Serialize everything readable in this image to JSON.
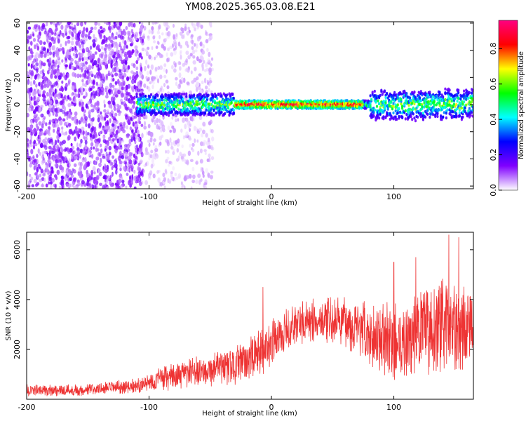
{
  "title": "YM08.2025.365.03.08.E21",
  "chart_data": [
    {
      "type": "heatmap",
      "name": "spectrogram",
      "xlabel": "Height of straight line (km)",
      "ylabel": "Frequency (Hz)",
      "xlim": [
        -200,
        165
      ],
      "ylim": [
        -62,
        61
      ],
      "xticks": [
        -200,
        -100,
        0,
        100
      ],
      "xtick_labels": [
        "-200",
        "-100",
        "0",
        "100"
      ],
      "yticks": [
        -60,
        -40,
        -20,
        0,
        20,
        40,
        60
      ],
      "ytick_labels": [
        "-60",
        "-40",
        "-20",
        "0",
        "20",
        "40",
        "60"
      ],
      "colorbar": {
        "label": "Normalized spectral amplitude",
        "range": [
          0.0,
          0.96
        ],
        "ticks": [
          0.0,
          0.2,
          0.4,
          0.6,
          0.8
        ],
        "tick_labels": [
          "0.0",
          "0.2",
          "0.4",
          "0.6",
          "0.8"
        ],
        "colors": [
          "#ffffff",
          "#8000ff",
          "#0000ff",
          "#00ffff",
          "#00ff00",
          "#ffff00",
          "#ff0000",
          "#ff0080"
        ]
      },
      "features": [
        {
          "description": "broadband noise",
          "x_range": [
            -200,
            -105
          ],
          "freq_range": [
            -62,
            61
          ],
          "amplitude": 0.12
        },
        {
          "description": "faint noise",
          "x_range": [
            -105,
            -48
          ],
          "freq_range": [
            -62,
            61
          ],
          "amplitude": 0.05
        },
        {
          "description": "meteor echo band",
          "x_range": [
            -110,
            165
          ],
          "center_freq_hz": 0,
          "half_width_hz": [
            8,
            3,
            10
          ],
          "peak_amplitude": 0.9,
          "peak_x_range": [
            -30,
            75
          ]
        }
      ]
    },
    {
      "type": "line",
      "name": "snr",
      "xlabel": "Height of straight line (km)",
      "ylabel": "SNR (10 * v/v)",
      "xlim": [
        -200,
        165
      ],
      "ylim": [
        0,
        6700
      ],
      "xticks": [
        -200,
        -100,
        0,
        100
      ],
      "xtick_labels": [
        "-200",
        "-100",
        "0",
        "100"
      ],
      "yticks": [
        2000,
        4000,
        6000
      ],
      "ytick_labels": [
        "2000",
        "4000",
        "6000"
      ],
      "color": "#ee3333",
      "envelope": {
        "x": [
          -200,
          -150,
          -110,
          -90,
          -60,
          -30,
          -10,
          0,
          20,
          40,
          60,
          80,
          100,
          120,
          140,
          165
        ],
        "mean": [
          350,
          380,
          550,
          800,
          1100,
          1350,
          1800,
          2300,
          3000,
          3200,
          3100,
          2600,
          2300,
          2600,
          3000,
          2900
        ],
        "spread": [
          250,
          250,
          300,
          500,
          650,
          800,
          1000,
          900,
          900,
          900,
          1000,
          1300,
          1600,
          1700,
          1900,
          1700
        ]
      },
      "spikes": [
        {
          "x": -7,
          "y": 4500
        },
        {
          "x": 145,
          "y": 6600
        },
        {
          "x": 153,
          "y": 6500
        },
        {
          "x": 100,
          "y": 5500
        },
        {
          "x": 118,
          "y": 5700
        }
      ]
    }
  ]
}
